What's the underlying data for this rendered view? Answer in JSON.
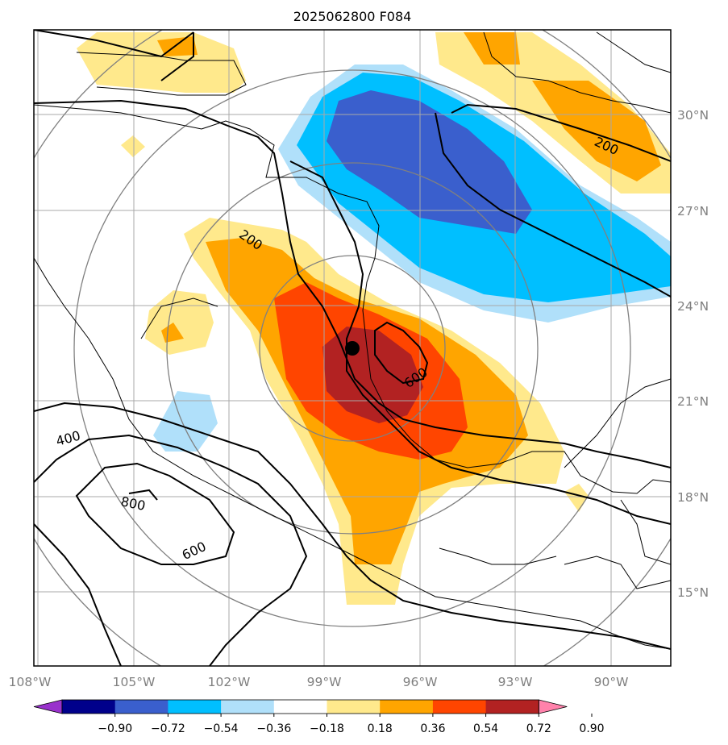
{
  "title": "2025062800 F084",
  "map": {
    "lat_labels": [
      "30°N",
      "27°N",
      "24°N",
      "21°N",
      "18°N",
      "15°N"
    ],
    "lon_labels": [
      "108°W",
      "105°W",
      "102°W",
      "99°W",
      "96°W",
      "93°W",
      "90°W"
    ],
    "contour_labels": [
      "200",
      "200",
      "600",
      "400",
      "800",
      "600"
    ],
    "center_marker": "storm-center-dot"
  },
  "colorbar": {
    "ticks": [
      "−0.90",
      "−0.72",
      "−0.54",
      "−0.36",
      "−0.18",
      "0.18",
      "0.36",
      "0.54",
      "0.72",
      "0.90"
    ],
    "colors": [
      "#9932cc",
      "#00008b",
      "#3a5fcd",
      "#00bfff",
      "#b0e0fa",
      "#ffffff",
      "#ffe98c",
      "#ffa500",
      "#ff4500",
      "#b22222",
      "#ff82ab"
    ]
  }
}
